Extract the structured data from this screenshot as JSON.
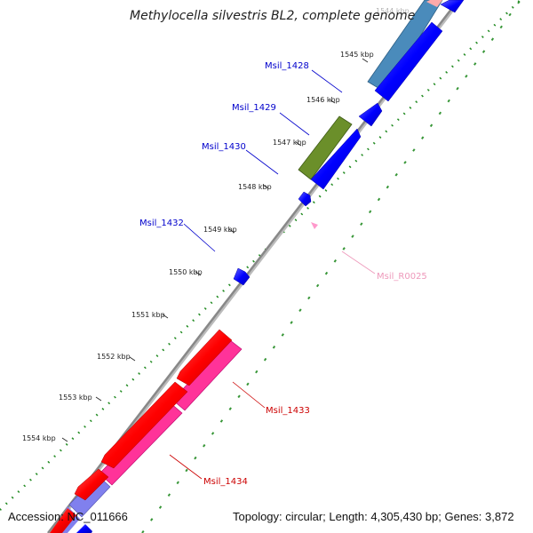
{
  "title": "Methylocella silvestris BL2, complete genome",
  "footer": {
    "accession": "Accession: NC_011666",
    "topology": "Topology: circular; Length: 4,305,430 bp; Genes: 3,872"
  },
  "ticks": [
    {
      "label": "1544 kbp",
      "faded": true
    },
    {
      "label": "1545 kbp"
    },
    {
      "label": "1546 kbp"
    },
    {
      "label": "1547 kbp"
    },
    {
      "label": "1548 kbp"
    },
    {
      "label": "1549 kbp"
    },
    {
      "label": "1550 kbp"
    },
    {
      "label": "1551 kbp"
    },
    {
      "label": "1552 kbp"
    },
    {
      "label": "1553 kbp"
    },
    {
      "label": "1554 kbp"
    }
  ],
  "genes": [
    {
      "name": "Msil_1428",
      "color": "#0000cc"
    },
    {
      "name": "Msil_1429",
      "color": "#0000cc"
    },
    {
      "name": "Msil_1430",
      "color": "#0000cc"
    },
    {
      "name": "Msil_1432",
      "color": "#0000cc"
    },
    {
      "name": "Msil_R0025",
      "color": "#ee99bb"
    },
    {
      "name": "Msil_1433",
      "color": "#cc0000"
    },
    {
      "name": "Msil_1434",
      "color": "#cc0000"
    }
  ],
  "colors": {
    "cds_forward": "#0000ff",
    "cds_reverse": "#ff0000",
    "cog_blue": "#4a8bbb",
    "cog_olive": "#6b8f2a",
    "cog_pink": "#ff3399",
    "cog_lavender": "#8080ee",
    "rna": "#ff99cc",
    "backbone": "#888888",
    "gc_dots": "#228b22"
  }
}
